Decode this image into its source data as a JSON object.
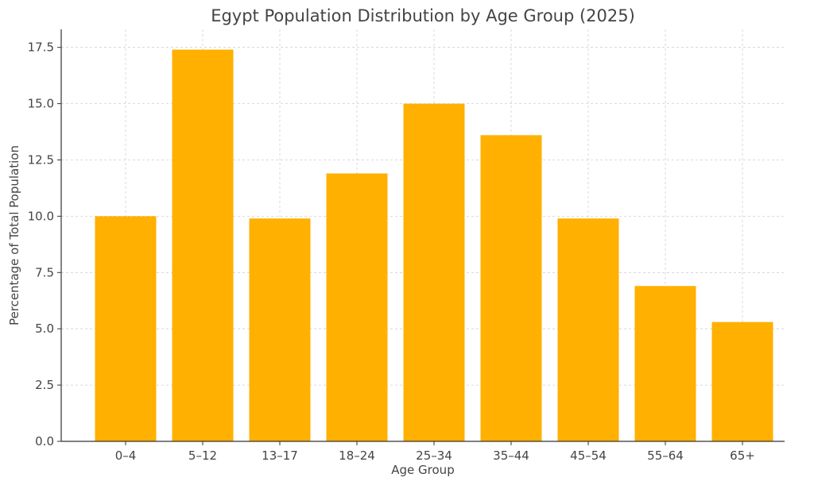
{
  "chart_data": {
    "type": "bar",
    "title": "Egypt Population Distribution by Age Group (2025)",
    "xlabel": "Age Group",
    "ylabel": "Percentage of Total Population",
    "categories": [
      "0–4",
      "5–12",
      "13–17",
      "18–24",
      "25–34",
      "35–44",
      "45–54",
      "55–64",
      "65+"
    ],
    "values": [
      10.0,
      17.4,
      9.9,
      11.9,
      15.0,
      13.6,
      9.9,
      6.9,
      5.3
    ],
    "ylim": [
      0,
      18.3
    ],
    "yticks": [
      "0.0",
      "2.5",
      "5.0",
      "7.5",
      "10.0",
      "12.5",
      "15.0",
      "17.5"
    ],
    "grid": true,
    "bar_color": "#FFB000"
  }
}
